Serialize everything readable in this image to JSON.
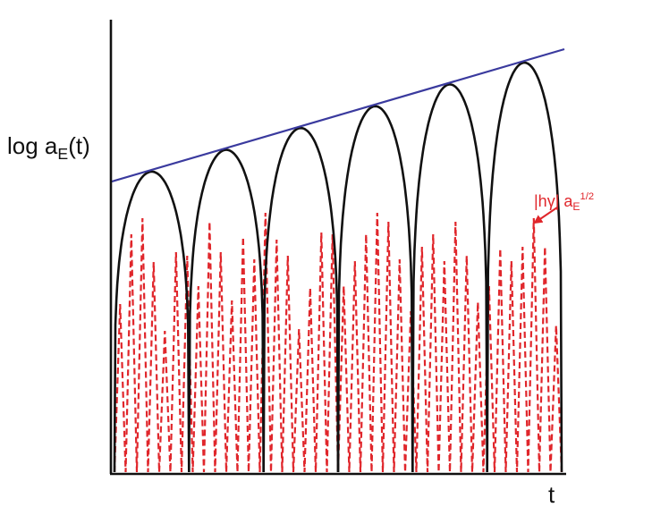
{
  "labels": {
    "y_prefix": "log a",
    "y_sub": "E",
    "y_suffix": "(t)",
    "x": "t",
    "red_prefix": "|h",
    "red_gamma": "γ",
    "red_mid": "| a",
    "red_sub": "E",
    "red_sup": "1/2"
  },
  "colors": {
    "axis": "#111111",
    "envelope_line": "#3a3a9e",
    "arches": "#111111",
    "dashed": "#e0262b"
  },
  "chart_data": {
    "type": "line",
    "xlabel": "t",
    "ylabel": "log a_E(t)",
    "arches": {
      "count": 6,
      "style": "solid black, touching the linear envelope at their peaks"
    },
    "envelope": {
      "style": "straight line, rising with t"
    },
    "dashed_series": {
      "name": "|hγ| a_E^1/2",
      "style": "red dashed oscillation"
    }
  }
}
